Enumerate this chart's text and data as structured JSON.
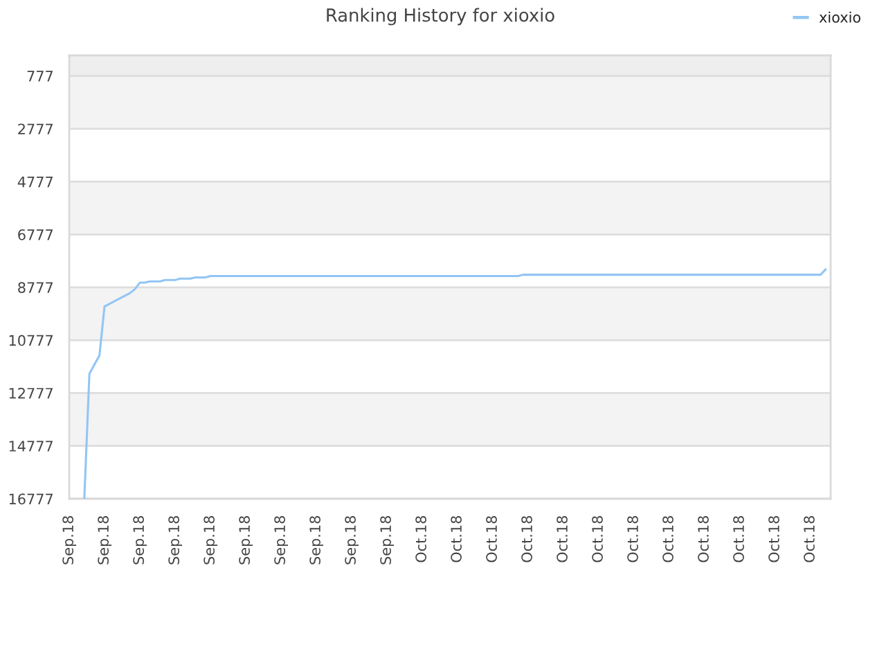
{
  "chart_data": {
    "type": "line",
    "title": "Ranking History for xioxio",
    "categories": [
      "Sep.18",
      null,
      null,
      null,
      null,
      null,
      null,
      "Sep.18",
      null,
      null,
      null,
      null,
      null,
      null,
      "Sep.18",
      null,
      null,
      null,
      null,
      null,
      null,
      "Sep.18",
      null,
      null,
      null,
      null,
      null,
      null,
      "Sep.18",
      null,
      null,
      null,
      null,
      null,
      null,
      "Sep.18",
      null,
      null,
      null,
      null,
      null,
      null,
      "Sep.18",
      null,
      null,
      null,
      null,
      null,
      null,
      "Sep.18",
      null,
      null,
      null,
      null,
      null,
      null,
      "Sep.18",
      null,
      null,
      null,
      null,
      null,
      null,
      "Sep.18",
      null,
      null,
      null,
      null,
      null,
      null,
      "Oct.18",
      null,
      null,
      null,
      null,
      null,
      null,
      "Oct.18",
      null,
      null,
      null,
      null,
      null,
      null,
      "Oct.18",
      null,
      null,
      null,
      null,
      null,
      null,
      "Oct.18",
      null,
      null,
      null,
      null,
      null,
      null,
      "Oct.18",
      null,
      null,
      null,
      null,
      null,
      null,
      "Oct.18",
      null,
      null,
      null,
      null,
      null,
      null,
      "Oct.18",
      null,
      null,
      null,
      null,
      null,
      null,
      "Oct.18",
      null,
      null,
      null,
      null,
      null,
      null,
      "Oct.18",
      null,
      null,
      null,
      null,
      null,
      null,
      "Oct.18",
      null,
      null,
      null,
      null,
      null,
      null,
      "Oct.18",
      null,
      null,
      null,
      null,
      null,
      null,
      "Oct.18",
      null,
      null,
      null,
      null
    ],
    "series": [
      {
        "name": "xioxio",
        "color": "#92c5f5",
        "values": [
          null,
          null,
          null,
          16750,
          12050,
          11700,
          11350,
          9500,
          9400,
          9300,
          9200,
          9100,
          9000,
          8850,
          8600,
          8600,
          8550,
          8550,
          8550,
          8500,
          8500,
          8500,
          8450,
          8450,
          8450,
          8400,
          8400,
          8400,
          8350,
          8350,
          8350,
          8350,
          8350,
          8350,
          8350,
          8350,
          8350,
          8350,
          8350,
          8350,
          8350,
          8350,
          8350,
          8350,
          8350,
          8350,
          8350,
          8350,
          8350,
          8350,
          8350,
          8350,
          8350,
          8350,
          8350,
          8350,
          8350,
          8350,
          8350,
          8350,
          8350,
          8350,
          8350,
          8350,
          8350,
          8350,
          8350,
          8350,
          8350,
          8350,
          8350,
          8350,
          8350,
          8350,
          8350,
          8350,
          8350,
          8350,
          8350,
          8350,
          8350,
          8350,
          8350,
          8350,
          8350,
          8350,
          8350,
          8350,
          8350,
          8350,
          8300,
          8300,
          8300,
          8300,
          8300,
          8300,
          8300,
          8300,
          8300,
          8300,
          8300,
          8300,
          8300,
          8300,
          8300,
          8300,
          8300,
          8300,
          8300,
          8300,
          8300,
          8300,
          8300,
          8300,
          8300,
          8300,
          8300,
          8300,
          8300,
          8300,
          8300,
          8300,
          8300,
          8300,
          8300,
          8300,
          8300,
          8300,
          8300,
          8300,
          8300,
          8300,
          8300,
          8300,
          8300,
          8300,
          8300,
          8300,
          8300,
          8300,
          8300,
          8300,
          8300,
          8300,
          8300,
          8300,
          8300,
          8300,
          8300,
          8300,
          8100,
          null
        ]
      }
    ],
    "ylim": [
      16777,
      0
    ],
    "yticks": [
      777,
      2777,
      4777,
      6777,
      8777,
      10777,
      12777,
      14777,
      16777
    ],
    "bands": [
      {
        "axis": "y",
        "from": 0,
        "to": 777,
        "color": "#eeeeee"
      },
      {
        "axis": "y",
        "from": 777,
        "to": 2777,
        "color": "#f3f3f3"
      },
      {
        "axis": "y",
        "from": 4777,
        "to": 6777,
        "color": "#f3f3f3"
      },
      {
        "axis": "y",
        "from": 8777,
        "to": 10777,
        "color": "#f3f3f3"
      },
      {
        "axis": "y",
        "from": 12777,
        "to": 14777,
        "color": "#f3f3f3"
      }
    ],
    "grid": "y",
    "legend": "top right"
  }
}
